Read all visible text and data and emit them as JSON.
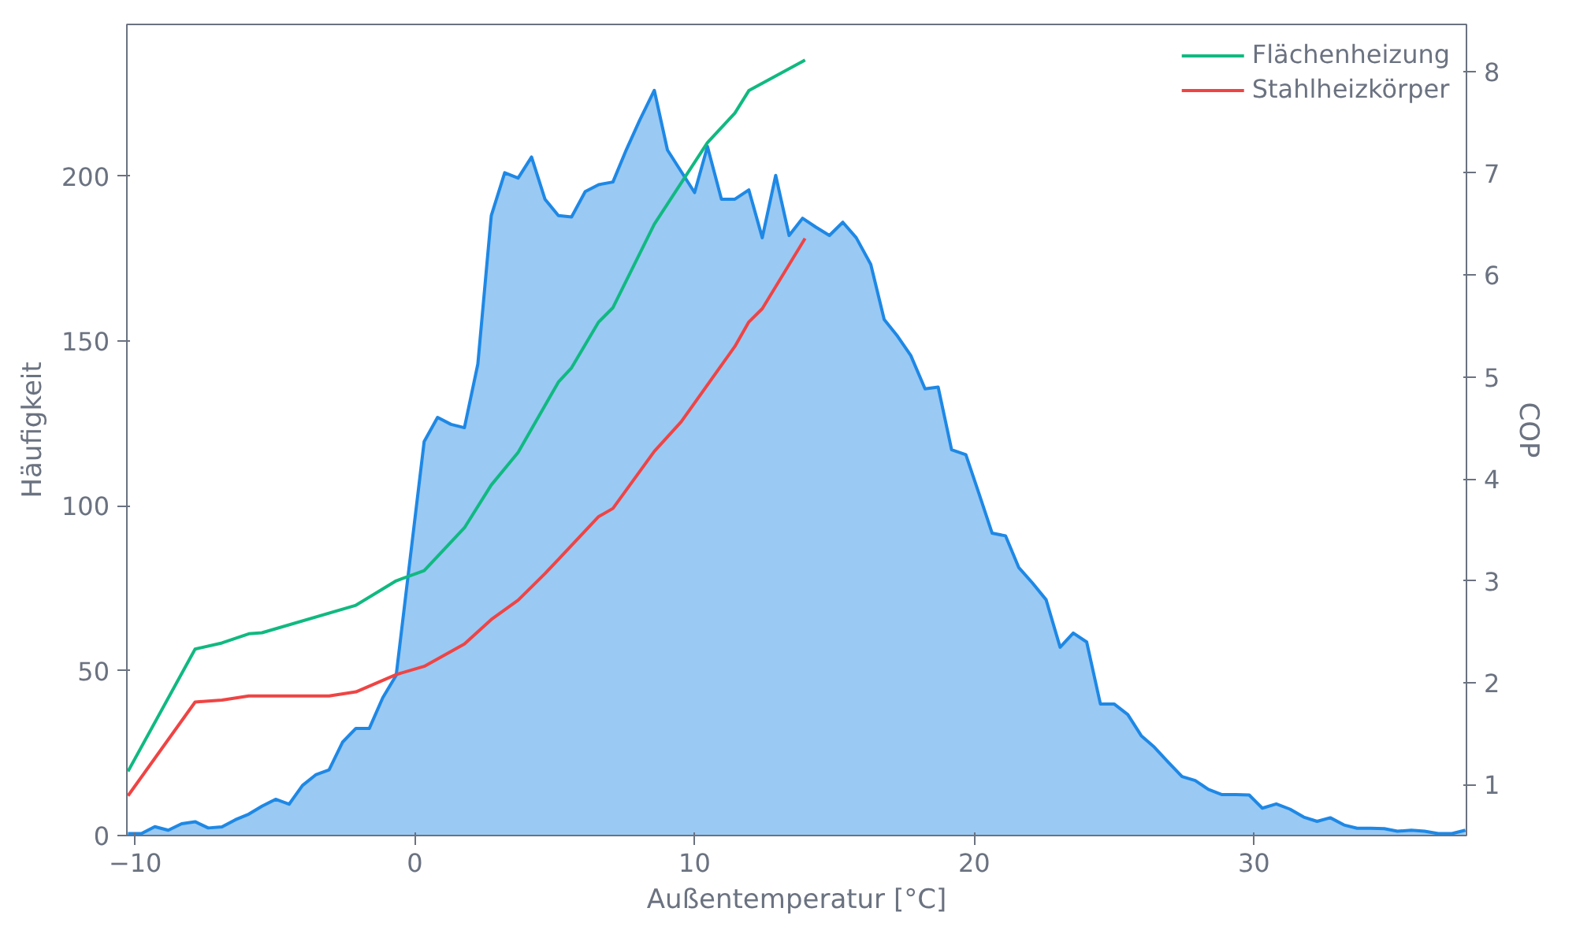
{
  "chart_data": {
    "type": "area",
    "xlabel": "Außentemperatur [°C]",
    "ylabel": "Häufigkeit",
    "y2label": "COP",
    "xlim": [
      -10.3,
      37.6
    ],
    "ylim": [
      0,
      246
    ],
    "y2lim": [
      0.5,
      8.46
    ],
    "xticks": [
      {
        "value": -10,
        "label": "−10"
      },
      0,
      10,
      20,
      30
    ],
    "yticks": [
      0,
      50,
      100,
      150,
      200
    ],
    "y2ticks": [
      1,
      2,
      3,
      4,
      5,
      6,
      7,
      8
    ],
    "grid": false,
    "legend": "top right",
    "series": [
      {
        "color": "#1e88e5",
        "x": [
          -10.26,
          -9.78,
          -9.3,
          -8.82,
          -8.34,
          -7.86,
          -7.39,
          -6.9,
          -6.42,
          -5.94,
          -5.47,
          -4.98,
          -4.5,
          -4.02,
          -3.55,
          -3.07,
          -2.59,
          -2.11,
          -1.63,
          -1.15,
          -0.67,
          0.33,
          0.81,
          1.29,
          1.77,
          2.25,
          2.73,
          3.21,
          3.69,
          4.17,
          4.65,
          5.13,
          5.6,
          6.09,
          6.57,
          7.08,
          7.56,
          8.04,
          8.56,
          9.03,
          9.52,
          10.0,
          10.46,
          10.96,
          11.44,
          11.94,
          12.42,
          12.9,
          13.38,
          13.86,
          14.34,
          14.82,
          15.3,
          15.78,
          16.3,
          16.78,
          17.26,
          17.73,
          18.24,
          18.71,
          19.19,
          19.7,
          20.17,
          20.64,
          21.12,
          21.59,
          22.08,
          22.57,
          23.07,
          23.54,
          24.02,
          24.51,
          25.0,
          25.49,
          25.97,
          26.44,
          26.93,
          27.43,
          27.9,
          28.37,
          28.86,
          29.35,
          29.83,
          30.3,
          30.8,
          31.29,
          31.78,
          32.26,
          32.73,
          33.22,
          33.69,
          34.18,
          34.66,
          35.13,
          35.63,
          36.1,
          36.59,
          37.08,
          37.56
        ],
        "values": [
          0.6,
          0.6,
          2.7,
          1.6,
          3.6,
          4.2,
          2.3,
          2.6,
          4.8,
          6.5,
          8.9,
          11,
          9.5,
          15.2,
          18.4,
          19.9,
          28.3,
          32.5,
          32.5,
          41.8,
          48.6,
          119.5,
          126.8,
          124.7,
          123.7,
          143,
          188,
          201,
          199.4,
          205.8,
          193,
          188,
          187.6,
          195.3,
          197.4,
          198.2,
          208,
          217,
          226,
          207.9,
          201.4,
          195,
          209,
          193,
          193,
          195.8,
          181.3,
          200.2,
          182,
          187.2,
          184.5,
          182,
          186,
          181.3,
          173.2,
          156.5,
          151.4,
          145.6,
          135.5,
          136,
          117,
          115.5,
          103.7,
          91.7,
          90.9,
          81.3,
          76.6,
          71.5,
          57.1,
          61.4,
          58.7,
          39.9,
          39.9,
          36.7,
          30.3,
          26.8,
          22.3,
          17.9,
          16.7,
          14,
          12.4,
          12.4,
          12.3,
          8.3,
          9.6,
          8,
          5.6,
          4.3,
          5.4,
          3.2,
          2.2,
          2.2,
          2.1,
          1.3,
          1.6,
          1.3,
          0.6,
          0.6,
          1.6
        ]
      },
      {
        "type": "line",
        "axis": "y2",
        "name": "Flächenheizung",
        "color": "#10b981",
        "x": [
          -10.26,
          -7.86,
          -6.9,
          -5.94,
          -5.47,
          -2.11,
          -0.67,
          0.33,
          1.77,
          2.73,
          3.69,
          5.13,
          5.6,
          6.57,
          7.08,
          8.56,
          10.46,
          11.44,
          11.94,
          13.95
        ],
        "values": [
          1.13,
          2.33,
          2.39,
          2.48,
          2.49,
          2.76,
          3.0,
          3.1,
          3.52,
          3.94,
          4.26,
          4.95,
          5.09,
          5.54,
          5.68,
          6.5,
          7.3,
          7.59,
          7.81,
          8.11
        ]
      },
      {
        "type": "line",
        "axis": "y2",
        "name": "Stahlheizkörper",
        "color": "#ef4444",
        "x": [
          -10.26,
          -7.86,
          -6.9,
          -5.94,
          -3.07,
          -2.11,
          -0.67,
          0.33,
          1.77,
          2.73,
          3.69,
          4.65,
          5.13,
          6.57,
          7.08,
          8.56,
          9.52,
          11.44,
          11.94,
          12.42,
          13.95
        ],
        "values": [
          0.89,
          1.81,
          1.83,
          1.87,
          1.87,
          1.91,
          2.08,
          2.16,
          2.38,
          2.62,
          2.81,
          3.07,
          3.21,
          3.63,
          3.71,
          4.27,
          4.56,
          5.3,
          5.54,
          5.67,
          6.36
        ]
      }
    ]
  }
}
